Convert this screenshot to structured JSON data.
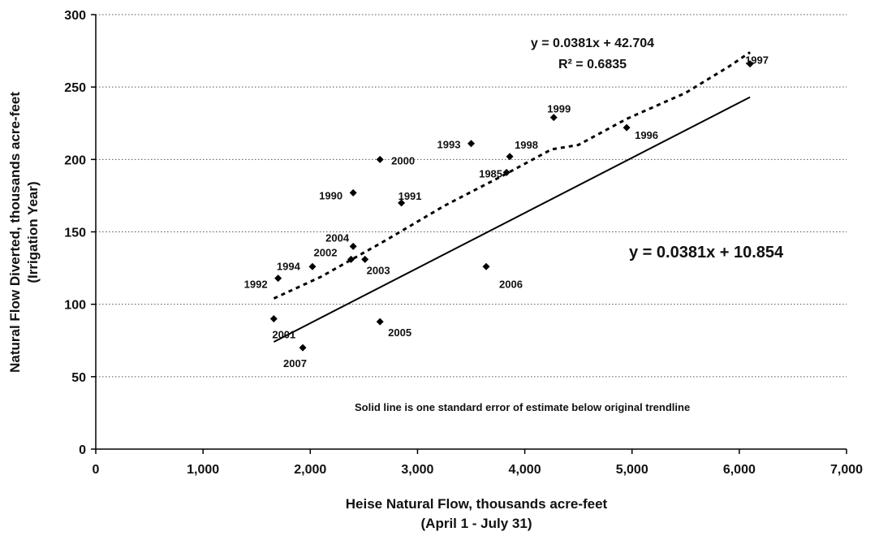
{
  "chart_data": {
    "type": "scatter",
    "xlabel": "Heise Natural Flow, thousands acre-feet",
    "xlabel_sub": "(April 1 - July 31)",
    "ylabel": "Natural Flow Diverted, thousands acre-feet",
    "ylabel_sub": "(Irrigation Year)",
    "xlim": [
      0,
      7000
    ],
    "ylim": [
      0,
      300
    ],
    "x_ticks": [
      0,
      1000,
      2000,
      3000,
      4000,
      5000,
      6000,
      7000
    ],
    "x_tick_labels": [
      "0",
      "1,000",
      "2,000",
      "3,000",
      "4,000",
      "5,000",
      "6,000",
      "7,000"
    ],
    "y_ticks": [
      0,
      50,
      100,
      150,
      200,
      250,
      300
    ],
    "y_tick_labels": [
      "0",
      "50",
      "100",
      "150",
      "200",
      "250",
      "300"
    ],
    "grid": "horizontal dotted",
    "points": [
      {
        "label": "1985",
        "x": 3830,
        "y": 191
      },
      {
        "label": "1990",
        "x": 2400,
        "y": 177
      },
      {
        "label": "1991",
        "x": 2850,
        "y": 170
      },
      {
        "label": "1992",
        "x": 1700,
        "y": 118
      },
      {
        "label": "1993",
        "x": 3500,
        "y": 211
      },
      {
        "label": "1994",
        "x": 2020,
        "y": 126
      },
      {
        "label": "1996",
        "x": 4950,
        "y": 222
      },
      {
        "label": "1997",
        "x": 6100,
        "y": 266
      },
      {
        "label": "1998",
        "x": 3860,
        "y": 202
      },
      {
        "label": "1999",
        "x": 4270,
        "y": 229
      },
      {
        "label": "2000",
        "x": 2650,
        "y": 200
      },
      {
        "label": "2001",
        "x": 1660,
        "y": 90
      },
      {
        "label": "2002",
        "x": 2380,
        "y": 131
      },
      {
        "label": "2003",
        "x": 2510,
        "y": 131
      },
      {
        "label": "2004",
        "x": 2400,
        "y": 140
      },
      {
        "label": "2005",
        "x": 2650,
        "y": 88
      },
      {
        "label": "2006",
        "x": 3640,
        "y": 126
      },
      {
        "label": "2007",
        "x": 1930,
        "y": 70
      }
    ],
    "series": [
      {
        "style": "dotted",
        "equation": "y = 0.0381x + 42.704",
        "r_squared": "R² = 0.6835",
        "x": [
          1660,
          2100,
          2700,
          3250,
          3800,
          4250,
          4500,
          4950,
          5500,
          5900,
          6100
        ],
        "y": [
          104,
          119,
          144,
          168,
          189,
          207,
          210,
          228,
          246,
          264,
          274
        ]
      },
      {
        "style": "solid",
        "equation": "y = 0.0381x + 10.854",
        "x": [
          1660,
          6100
        ],
        "y": [
          74,
          243
        ]
      }
    ],
    "note": "Solid line is one standard error of estimate below original trendline",
    "marker_color": "#000000"
  }
}
